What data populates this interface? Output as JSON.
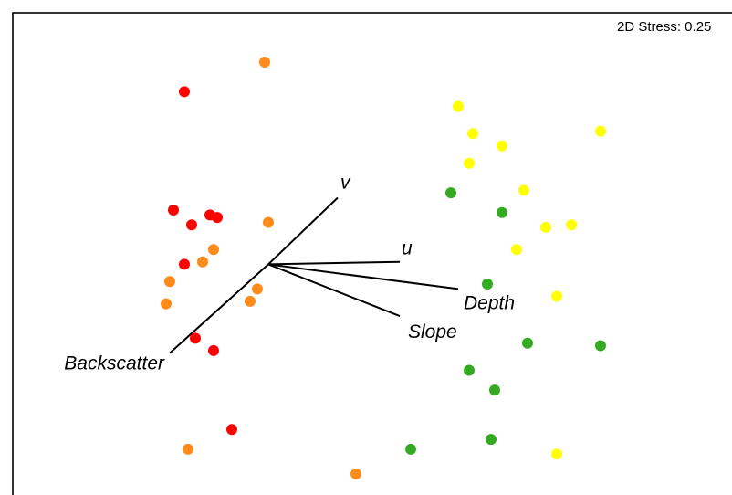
{
  "chart_data": {
    "type": "scatter",
    "title": "",
    "annotation": "2D Stress: 0.25",
    "xlabel": "",
    "ylabel": "",
    "xlim": [
      0,
      100
    ],
    "ylim": [
      0,
      100
    ],
    "axes_visible": false,
    "grid": false,
    "legend": "none",
    "series": [
      {
        "color": "#ff0000",
        "points": [
          {
            "x": 23.5,
            "y": 84
          },
          {
            "x": 22.0,
            "y": 60
          },
          {
            "x": 24.5,
            "y": 57
          },
          {
            "x": 27.0,
            "y": 59
          },
          {
            "x": 28.0,
            "y": 58.5
          },
          {
            "x": 23.5,
            "y": 49
          },
          {
            "x": 25.0,
            "y": 34
          },
          {
            "x": 27.5,
            "y": 31.5
          },
          {
            "x": 30.0,
            "y": 15.5
          }
        ]
      },
      {
        "color": "#ff8c1a",
        "points": [
          {
            "x": 34.5,
            "y": 90
          },
          {
            "x": 35.0,
            "y": 57.5
          },
          {
            "x": 27.5,
            "y": 52
          },
          {
            "x": 26.0,
            "y": 49.5
          },
          {
            "x": 21.5,
            "y": 45.5
          },
          {
            "x": 21.0,
            "y": 41
          },
          {
            "x": 33.5,
            "y": 44
          },
          {
            "x": 32.5,
            "y": 41.5
          },
          {
            "x": 24.0,
            "y": 11.5
          },
          {
            "x": 47.0,
            "y": 6.5
          }
        ]
      },
      {
        "color": "#ffff00",
        "points": [
          {
            "x": 61.0,
            "y": 81
          },
          {
            "x": 63.0,
            "y": 75.5
          },
          {
            "x": 67.0,
            "y": 73
          },
          {
            "x": 62.5,
            "y": 69.5
          },
          {
            "x": 80.5,
            "y": 76
          },
          {
            "x": 70.0,
            "y": 64
          },
          {
            "x": 73.0,
            "y": 56.5
          },
          {
            "x": 76.5,
            "y": 57
          },
          {
            "x": 69.0,
            "y": 52
          },
          {
            "x": 74.5,
            "y": 42.5
          },
          {
            "x": 74.5,
            "y": 10.5
          }
        ]
      },
      {
        "color": "#33aa22",
        "points": [
          {
            "x": 60.0,
            "y": 63.5
          },
          {
            "x": 67.0,
            "y": 59.5
          },
          {
            "x": 65.0,
            "y": 45
          },
          {
            "x": 70.5,
            "y": 33
          },
          {
            "x": 80.5,
            "y": 32.5
          },
          {
            "x": 62.5,
            "y": 27.5
          },
          {
            "x": 66.0,
            "y": 23.5
          },
          {
            "x": 65.5,
            "y": 13.5
          },
          {
            "x": 54.5,
            "y": 11.5
          }
        ]
      }
    ],
    "vectors": {
      "origin": {
        "x": 35,
        "y": 49
      },
      "items": [
        {
          "name": "v",
          "x": 44.5,
          "y": 62.5
        },
        {
          "name": "u",
          "x": 53,
          "y": 49.5
        },
        {
          "name": "Depth",
          "x": 61,
          "y": 44
        },
        {
          "name": "Slope",
          "x": 53,
          "y": 38.5
        },
        {
          "name": "Backscatter",
          "x": 21.5,
          "y": 31
        }
      ]
    }
  }
}
